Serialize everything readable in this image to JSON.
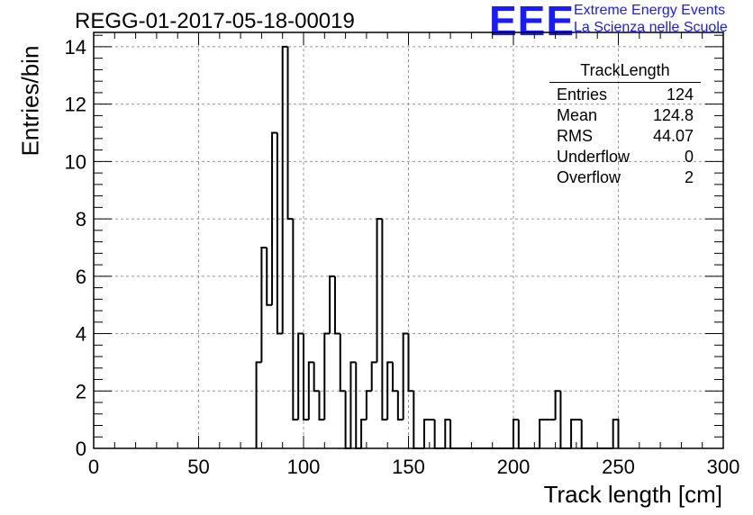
{
  "header": {
    "title": "REGG-01-2017-05-18-00019",
    "logo_text": "EEE",
    "logo_line1": "Extreme Energy Events",
    "logo_line2": "La Scienza nelle Scuole",
    "logo_color": "#1a1aff"
  },
  "stats": {
    "name": "TrackLength",
    "rows": [
      {
        "label": "Entries",
        "value": "124"
      },
      {
        "label": "Mean",
        "value": "124.8"
      },
      {
        "label": "RMS",
        "value": "44.07"
      },
      {
        "label": "Underflow",
        "value": "0"
      },
      {
        "label": "Overflow",
        "value": "2"
      }
    ]
  },
  "chart_data": {
    "type": "histogram",
    "title": "REGG-01-2017-05-18-00019",
    "xlabel": "Track length [cm]",
    "ylabel": "Entries/bin",
    "xlim": [
      0,
      300
    ],
    "ylim": [
      0,
      14.5
    ],
    "bin_width": 2.5,
    "xticks": [
      0,
      50,
      100,
      150,
      200,
      250,
      300
    ],
    "yticks": [
      0,
      2,
      4,
      6,
      8,
      10,
      12,
      14
    ],
    "grid": true,
    "line_color": "#000000",
    "bins": [
      {
        "x": 77.5,
        "y": 3
      },
      {
        "x": 80,
        "y": 7
      },
      {
        "x": 82.5,
        "y": 5
      },
      {
        "x": 85,
        "y": 11
      },
      {
        "x": 87.5,
        "y": 4
      },
      {
        "x": 90,
        "y": 14
      },
      {
        "x": 92.5,
        "y": 8
      },
      {
        "x": 95,
        "y": 1
      },
      {
        "x": 97.5,
        "y": 4
      },
      {
        "x": 100,
        "y": 1
      },
      {
        "x": 102.5,
        "y": 3
      },
      {
        "x": 105,
        "y": 2
      },
      {
        "x": 107.5,
        "y": 1
      },
      {
        "x": 110,
        "y": 4
      },
      {
        "x": 112.5,
        "y": 6
      },
      {
        "x": 115,
        "y": 4
      },
      {
        "x": 117.5,
        "y": 2
      },
      {
        "x": 120,
        "y": 0
      },
      {
        "x": 122.5,
        "y": 3
      },
      {
        "x": 125,
        "y": 0
      },
      {
        "x": 127.5,
        "y": 1
      },
      {
        "x": 130,
        "y": 2
      },
      {
        "x": 132.5,
        "y": 3
      },
      {
        "x": 135,
        "y": 8
      },
      {
        "x": 137.5,
        "y": 1
      },
      {
        "x": 140,
        "y": 3
      },
      {
        "x": 142.5,
        "y": 2
      },
      {
        "x": 145,
        "y": 1
      },
      {
        "x": 147.5,
        "y": 4
      },
      {
        "x": 150,
        "y": 2
      },
      {
        "x": 152.5,
        "y": 0
      },
      {
        "x": 155,
        "y": 0
      },
      {
        "x": 157.5,
        "y": 1
      },
      {
        "x": 160,
        "y": 1
      },
      {
        "x": 162.5,
        "y": 0
      },
      {
        "x": 165,
        "y": 0
      },
      {
        "x": 167.5,
        "y": 1
      },
      {
        "x": 170,
        "y": 0
      },
      {
        "x": 172.5,
        "y": 0
      },
      {
        "x": 175,
        "y": 0
      },
      {
        "x": 177.5,
        "y": 0
      },
      {
        "x": 180,
        "y": 0
      },
      {
        "x": 182.5,
        "y": 0
      },
      {
        "x": 185,
        "y": 0
      },
      {
        "x": 187.5,
        "y": 0
      },
      {
        "x": 190,
        "y": 0
      },
      {
        "x": 192.5,
        "y": 0
      },
      {
        "x": 195,
        "y": 0
      },
      {
        "x": 197.5,
        "y": 0
      },
      {
        "x": 200,
        "y": 1
      },
      {
        "x": 202.5,
        "y": 0
      },
      {
        "x": 205,
        "y": 0
      },
      {
        "x": 207.5,
        "y": 0
      },
      {
        "x": 210,
        "y": 0
      },
      {
        "x": 212.5,
        "y": 1
      },
      {
        "x": 215,
        "y": 1
      },
      {
        "x": 217.5,
        "y": 1
      },
      {
        "x": 220,
        "y": 2
      },
      {
        "x": 222.5,
        "y": 0
      },
      {
        "x": 225,
        "y": 0
      },
      {
        "x": 227.5,
        "y": 1
      },
      {
        "x": 230,
        "y": 1
      },
      {
        "x": 232.5,
        "y": 0
      },
      {
        "x": 235,
        "y": 0
      },
      {
        "x": 237.5,
        "y": 0
      },
      {
        "x": 240,
        "y": 0
      },
      {
        "x": 242.5,
        "y": 0
      },
      {
        "x": 245,
        "y": 0
      },
      {
        "x": 247.5,
        "y": 1
      }
    ]
  }
}
